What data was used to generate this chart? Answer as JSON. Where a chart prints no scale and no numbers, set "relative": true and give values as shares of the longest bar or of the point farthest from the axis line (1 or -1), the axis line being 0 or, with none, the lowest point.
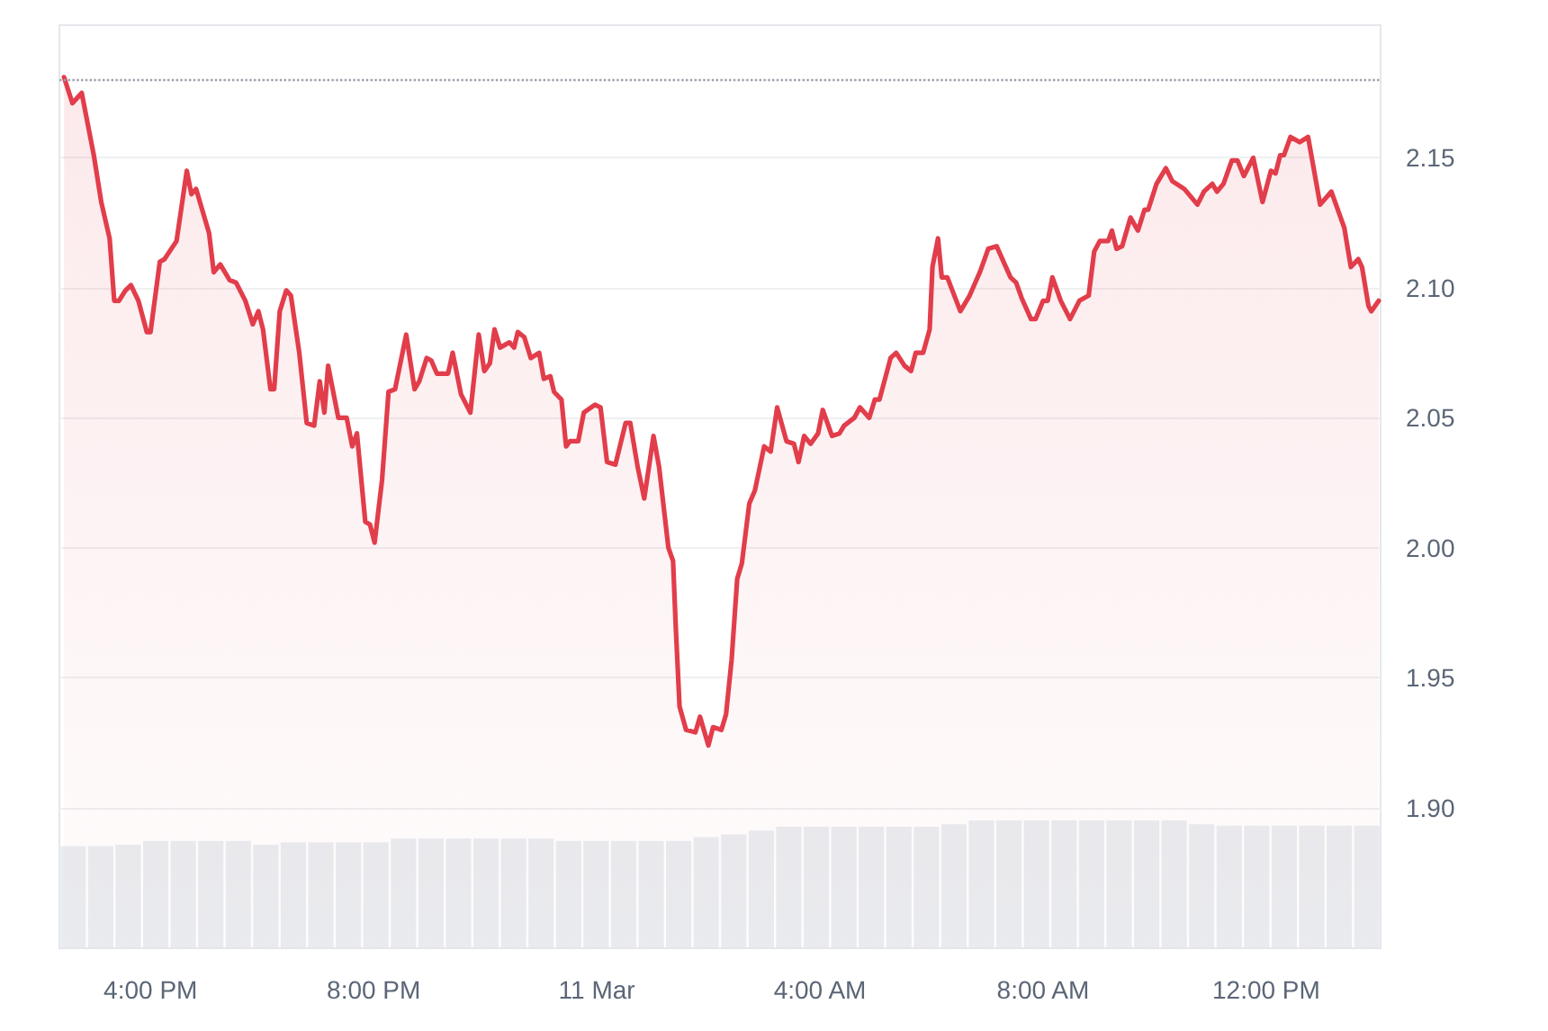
{
  "chart_data": [
    {
      "type": "area",
      "color": "#e23d4b",
      "marker": "none",
      "line_style": "solid",
      "grid": "y",
      "x": [
        "--03-10T14:27",
        "--03-10T14:36",
        "--03-10T14:46",
        "--03-10T14:59",
        "--03-10T15:07",
        "--03-10T15:16",
        "--03-10T15:21",
        "--03-10T15:26",
        "--03-10T15:33",
        "--03-10T15:39",
        "--03-10T15:47",
        "--03-10T15:56",
        "--03-10T16:00",
        "--03-10T16:10",
        "--03-10T16:15",
        "--03-10T16:28",
        "--03-10T16:39",
        "--03-10T16:44",
        "--03-10T16:49",
        "--03-10T17:03",
        "--03-10T17:08",
        "--03-10T17:15",
        "--03-10T17:25",
        "--03-10T17:32",
        "--03-10T17:42",
        "--03-10T17:50",
        "--03-10T17:56",
        "--03-10T18:01",
        "--03-10T18:09",
        "--03-10T18:13",
        "--03-10T18:19",
        "--03-10T18:26",
        "--03-10T18:31",
        "--03-10T18:40",
        "--03-10T18:48",
        "--03-10T18:56",
        "--03-10T19:02",
        "--03-10T19:07",
        "--03-10T19:11",
        "--03-10T19:22",
        "--03-10T19:31",
        "--03-10T19:37",
        "--03-10T19:42",
        "--03-10T19:51",
        "--03-10T19:56",
        "--03-10T20:01",
        "--03-10T20:09",
        "--03-10T20:16",
        "--03-10T20:23",
        "--03-10T20:35",
        "--03-10T20:44",
        "--03-10T20:49",
        "--03-10T20:57",
        "--03-10T21:02",
        "--03-10T21:08",
        "--03-10T21:20",
        "--03-10T21:25",
        "--03-10T21:34",
        "--03-10T21:44",
        "--03-10T21:53",
        "--03-10T21:59",
        "--03-10T22:05",
        "--03-10T22:10",
        "--03-10T22:16",
        "--03-10T22:26",
        "--03-10T22:31",
        "--03-10T22:35",
        "--03-10T22:42",
        "--03-10T22:49",
        "--03-10T22:58",
        "--03-10T23:03",
        "--03-10T23:10",
        "--03-10T23:14",
        "--03-10T23:22",
        "--03-10T23:27",
        "--03-10T23:31",
        "--03-10T23:40",
        "--03-10T23:46",
        "--03-10T23:58",
        "--03-11T00:04",
        "--03-11T00:11",
        "--03-11T00:20",
        "--03-11T00:31",
        "--03-11T00:36",
        "--03-11T00:44",
        "--03-11T00:51",
        "--03-11T01:01",
        "--03-11T01:07",
        "--03-11T01:17",
        "--03-11T01:22",
        "--03-11T01:25",
        "--03-11T01:29",
        "--03-11T01:36",
        "--03-11T01:46",
        "--03-11T01:51",
        "--03-11T02:00",
        "--03-11T02:05",
        "--03-11T02:14",
        "--03-11T02:19",
        "--03-11T02:25",
        "--03-11T02:31",
        "--03-11T02:36",
        "--03-11T02:44",
        "--03-11T02:50",
        "--03-11T03:00",
        "--03-11T03:07",
        "--03-11T03:14",
        "--03-11T03:24",
        "--03-11T03:32",
        "--03-11T03:37",
        "--03-11T03:43",
        "--03-11T03:50",
        "--03-11T03:58",
        "--03-11T04:03",
        "--03-11T04:13",
        "--03-11T04:21",
        "--03-11T04:26",
        "--03-11T04:37",
        "--03-11T04:43",
        "--03-11T04:53",
        "--03-11T04:59",
        "--03-11T05:04",
        "--03-11T05:16",
        "--03-11T05:22",
        "--03-11T05:31",
        "--03-11T05:38",
        "--03-11T05:43",
        "--03-11T05:51",
        "--03-11T05:58",
        "--03-11T06:01",
        "--03-11T06:07",
        "--03-11T06:11",
        "--03-11T06:17",
        "--03-11T06:31",
        "--03-11T06:41",
        "--03-11T06:52",
        "--03-11T07:01",
        "--03-11T07:10",
        "--03-11T07:25",
        "--03-11T07:31",
        "--03-11T07:37",
        "--03-11T07:47",
        "--03-11T07:52",
        "--03-11T08:00",
        "--03-11T08:05",
        "--03-11T08:10",
        "--03-11T08:19",
        "--03-11T08:29",
        "--03-11T08:39",
        "--03-11T08:49",
        "--03-11T08:55",
        "--03-11T09:01",
        "--03-11T09:10",
        "--03-11T09:14",
        "--03-11T09:19",
        "--03-11T09:25",
        "--03-11T09:34",
        "--03-11T09:42",
        "--03-11T09:49",
        "--03-11T09:53",
        "--03-11T10:02",
        "--03-11T10:12",
        "--03-11T10:19",
        "--03-11T10:32",
        "--03-11T10:46",
        "--03-11T10:53",
        "--03-11T11:02",
        "--03-11T11:07",
        "--03-11T11:14",
        "--03-11T11:23",
        "--03-11T11:29",
        "--03-11T11:36",
        "--03-11T11:46",
        "--03-11T11:56",
        "--03-11T12:05",
        "--03-11T12:10",
        "--03-11T12:15",
        "--03-11T12:19",
        "--03-11T12:26",
        "--03-11T12:36",
        "--03-11T12:45",
        "--03-11T12:58",
        "--03-11T13:10",
        "--03-11T13:24",
        "--03-11T13:31",
        "--03-11T13:39",
        "--03-11T13:43",
        "--03-11T13:50",
        "--03-11T13:53",
        "--03-11T14:01"
      ],
      "values": [
        2.181,
        2.171,
        2.175,
        2.151,
        2.133,
        2.119,
        2.095,
        2.095,
        2.099,
        2.101,
        2.095,
        2.083,
        2.083,
        2.11,
        2.111,
        2.118,
        2.145,
        2.136,
        2.138,
        2.121,
        2.106,
        2.109,
        2.103,
        2.102,
        2.095,
        2.086,
        2.091,
        2.084,
        2.061,
        2.061,
        2.091,
        2.099,
        2.097,
        2.075,
        2.048,
        2.047,
        2.064,
        2.052,
        2.07,
        2.05,
        2.05,
        2.039,
        2.044,
        2.01,
        2.009,
        2.002,
        2.026,
        2.06,
        2.061,
        2.082,
        2.061,
        2.064,
        2.073,
        2.072,
        2.067,
        2.067,
        2.075,
        2.059,
        2.052,
        2.082,
        2.068,
        2.071,
        2.084,
        2.077,
        2.079,
        2.077,
        2.083,
        2.081,
        2.073,
        2.075,
        2.065,
        2.066,
        2.06,
        2.057,
        2.039,
        2.041,
        2.041,
        2.052,
        2.055,
        2.054,
        2.033,
        2.032,
        2.048,
        2.048,
        2.031,
        2.019,
        2.043,
        2.031,
        2.0,
        1.995,
        1.969,
        1.939,
        1.93,
        1.929,
        1.935,
        1.924,
        1.931,
        1.93,
        1.936,
        1.957,
        1.988,
        1.994,
        2.017,
        2.022,
        2.039,
        2.037,
        2.054,
        2.041,
        2.04,
        2.033,
        2.043,
        2.04,
        2.044,
        2.053,
        2.043,
        2.044,
        2.047,
        2.05,
        2.054,
        2.05,
        2.057,
        2.057,
        2.073,
        2.075,
        2.07,
        2.068,
        2.075,
        2.075,
        2.084,
        2.108,
        2.119,
        2.104,
        2.104,
        2.091,
        2.097,
        2.106,
        2.115,
        2.116,
        2.104,
        2.102,
        2.096,
        2.088,
        2.088,
        2.095,
        2.095,
        2.104,
        2.095,
        2.088,
        2.095,
        2.097,
        2.114,
        2.118,
        2.118,
        2.122,
        2.115,
        2.116,
        2.127,
        2.122,
        2.13,
        2.13,
        2.14,
        2.146,
        2.141,
        2.138,
        2.132,
        2.137,
        2.14,
        2.137,
        2.14,
        2.149,
        2.149,
        2.143,
        2.15,
        2.133,
        2.145,
        2.144,
        2.151,
        2.151,
        2.158,
        2.156,
        2.158,
        2.132,
        2.137,
        2.123,
        2.108,
        2.111,
        2.108,
        2.093,
        2.091,
        2.095
      ],
      "xlim": [
        "--03-10T14:22",
        "--03-11T14:03"
      ],
      "xticks": [
        {
          "value": "--03-10T16:00",
          "label": "4:00 PM"
        },
        {
          "value": "--03-10T20:00",
          "label": "8:00 PM"
        },
        {
          "value": "--03-11T00:00",
          "label": "11 Mar"
        },
        {
          "value": "--03-11T04:00",
          "label": "4:00 AM"
        },
        {
          "value": "--03-11T08:00",
          "label": "8:00 AM"
        },
        {
          "value": "--03-11T12:00",
          "label": "12:00 PM"
        }
      ],
      "ylim": [
        1.846,
        2.201
      ],
      "yticks": [
        {
          "value": 1.9,
          "label": "1.90"
        },
        {
          "value": 1.95,
          "label": "1.95"
        },
        {
          "value": 2.0,
          "label": "2.00"
        },
        {
          "value": 2.05,
          "label": "2.05"
        },
        {
          "value": 2.1,
          "label": "2.10"
        },
        {
          "value": 2.15,
          "label": "2.15"
        }
      ],
      "ref_lines": [
        {
          "axis": "y",
          "value": 2.181,
          "color": "#9aa1aa",
          "line_style": "dotted"
        }
      ]
    },
    {
      "type": "bar",
      "relative": true,
      "color": "#e9edf1",
      "categories": [
        null,
        null,
        null,
        null,
        null,
        null,
        null,
        null,
        null,
        null,
        null,
        null,
        null,
        null,
        null,
        null,
        null,
        null,
        null,
        null,
        null,
        null,
        null,
        null,
        null,
        null,
        null,
        null,
        null,
        null,
        null,
        null,
        null,
        null,
        null,
        null,
        null,
        null,
        null,
        null,
        null,
        null,
        null,
        null,
        null,
        null,
        null,
        null
      ],
      "values": [
        0.8,
        0.8,
        0.81,
        0.84,
        0.84,
        0.84,
        0.84,
        0.81,
        0.83,
        0.83,
        0.83,
        0.83,
        0.86,
        0.86,
        0.86,
        0.86,
        0.86,
        0.86,
        0.84,
        0.84,
        0.84,
        0.84,
        0.84,
        0.87,
        0.89,
        0.92,
        0.95,
        0.95,
        0.95,
        0.95,
        0.95,
        0.95,
        0.97,
        1.0,
        1.0,
        1.0,
        1.0,
        1.0,
        1.0,
        1.0,
        1.0,
        0.97,
        0.96,
        0.96,
        0.96,
        0.96,
        0.96,
        0.96
      ]
    }
  ]
}
